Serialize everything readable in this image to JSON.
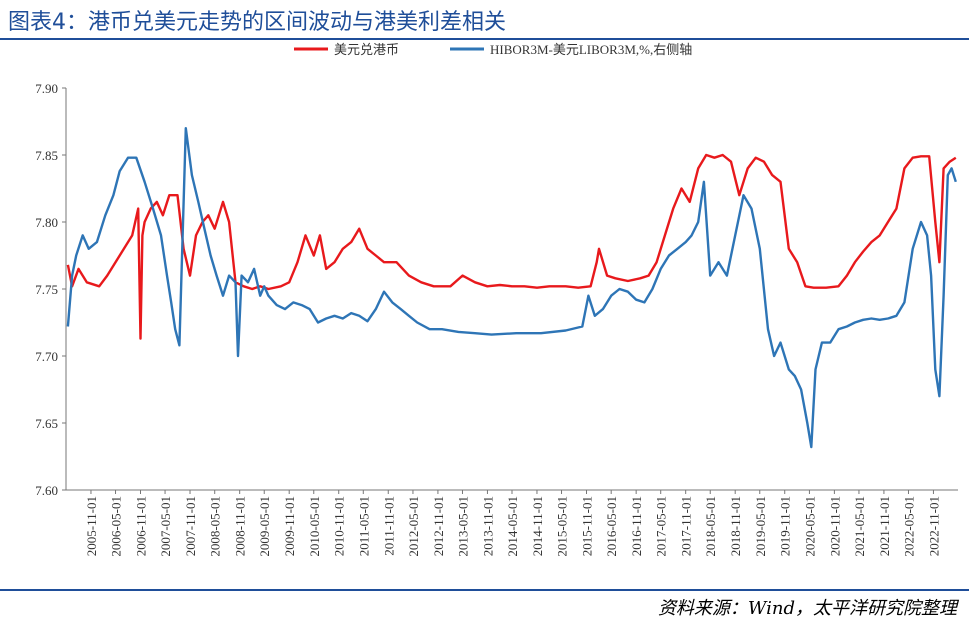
{
  "figure": {
    "title": "图表4：港币兑美元走势的区间波动与港美利差相关",
    "source": "资料来源：Wind，太平洋研究院整理"
  },
  "colors": {
    "hkd": "#e8191c",
    "hibor": "#2e75b6",
    "title": "#1f4e99"
  },
  "chart_data": {
    "type": "line",
    "title": "",
    "xlabel": "",
    "ylabel": "",
    "ylim": [
      7.6,
      7.9
    ],
    "yticks": [
      "7.90",
      "7.85",
      "7.80",
      "7.75",
      "7.70",
      "7.65",
      "7.60"
    ],
    "yticks_values": [
      7.9,
      7.85,
      7.8,
      7.75,
      7.7,
      7.65,
      7.6
    ],
    "x_range": [
      "2005-05-01",
      "2023-05-01"
    ],
    "xticks": [
      "2005-11-01",
      "2006-05-01",
      "2006-11-01",
      "2007-05-01",
      "2007-11-01",
      "2008-05-01",
      "2008-11-01",
      "2009-05-01",
      "2009-11-01",
      "2010-05-01",
      "2010-11-01",
      "2011-05-01",
      "2011-11-01",
      "2012-05-01",
      "2012-11-01",
      "2013-05-01",
      "2013-11-01",
      "2014-05-01",
      "2014-11-01",
      "2015-05-01",
      "2015-11-01",
      "2016-05-01",
      "2016-11-01",
      "2017-05-01",
      "2017-11-01",
      "2018-05-01",
      "2018-11-01",
      "2019-05-01",
      "2019-11-01",
      "2020-05-01",
      "2020-11-01",
      "2021-05-01",
      "2021-11-01",
      "2022-05-01",
      "2022-11-01"
    ],
    "legend_position": "top-center",
    "grid": false,
    "series": [
      {
        "name": "美元兑港币",
        "x": [
          "2005-05-15",
          "2005-06-15",
          "2005-08-01",
          "2005-10-01",
          "2006-01-01",
          "2006-03-01",
          "2006-06-01",
          "2006-09-01",
          "2006-10-15",
          "2006-11-01",
          "2006-11-15",
          "2006-12-01",
          "2007-01-15",
          "2007-03-01",
          "2007-04-15",
          "2007-06-01",
          "2007-08-01",
          "2007-09-15",
          "2007-11-01",
          "2007-12-15",
          "2008-02-01",
          "2008-03-15",
          "2008-05-01",
          "2008-07-01",
          "2008-08-15",
          "2008-10-01",
          "2008-12-01",
          "2009-02-01",
          "2009-04-01",
          "2009-06-01",
          "2009-09-01",
          "2009-11-01",
          "2010-01-01",
          "2010-03-01",
          "2010-05-01",
          "2010-06-15",
          "2010-08-01",
          "2010-10-01",
          "2010-12-01",
          "2011-02-01",
          "2011-04-01",
          "2011-06-01",
          "2011-08-01",
          "2011-10-01",
          "2012-01-01",
          "2012-04-01",
          "2012-07-01",
          "2012-10-01",
          "2013-02-01",
          "2013-05-01",
          "2013-08-01",
          "2013-11-01",
          "2014-02-01",
          "2014-05-01",
          "2014-08-01",
          "2014-11-01",
          "2015-02-01",
          "2015-06-01",
          "2015-09-01",
          "2015-12-01",
          "2016-01-15",
          "2016-02-01",
          "2016-04-01",
          "2016-06-01",
          "2016-09-01",
          "2016-12-01",
          "2017-02-01",
          "2017-04-01",
          "2017-06-01",
          "2017-08-01",
          "2017-10-01",
          "2017-12-01",
          "2018-02-01",
          "2018-04-01",
          "2018-06-01",
          "2018-08-01",
          "2018-10-01",
          "2018-12-01",
          "2019-02-01",
          "2019-04-01",
          "2019-06-01",
          "2019-08-01",
          "2019-10-01",
          "2019-12-01",
          "2020-02-01",
          "2020-04-01",
          "2020-06-01",
          "2020-09-01",
          "2020-12-01",
          "2021-02-01",
          "2021-04-01",
          "2021-06-01",
          "2021-08-01",
          "2021-10-01",
          "2021-12-01",
          "2022-02-01",
          "2022-04-01",
          "2022-06-01",
          "2022-08-01",
          "2022-10-01",
          "2022-11-15",
          "2022-12-15",
          "2023-01-15",
          "2023-03-01",
          "2023-04-15"
        ],
        "values": [
          7.768,
          7.752,
          7.765,
          7.755,
          7.752,
          7.76,
          7.775,
          7.79,
          7.81,
          7.713,
          7.79,
          7.8,
          7.81,
          7.815,
          7.805,
          7.82,
          7.82,
          7.78,
          7.76,
          7.79,
          7.8,
          7.805,
          7.795,
          7.815,
          7.8,
          7.755,
          7.752,
          7.75,
          7.752,
          7.75,
          7.752,
          7.755,
          7.77,
          7.79,
          7.775,
          7.79,
          7.765,
          7.77,
          7.78,
          7.785,
          7.795,
          7.78,
          7.775,
          7.77,
          7.77,
          7.76,
          7.755,
          7.752,
          7.752,
          7.76,
          7.755,
          7.752,
          7.753,
          7.752,
          7.752,
          7.751,
          7.752,
          7.752,
          7.751,
          7.752,
          7.77,
          7.78,
          7.76,
          7.758,
          7.756,
          7.758,
          7.76,
          7.77,
          7.79,
          7.81,
          7.825,
          7.815,
          7.84,
          7.85,
          7.848,
          7.85,
          7.845,
          7.82,
          7.84,
          7.848,
          7.845,
          7.835,
          7.83,
          7.78,
          7.77,
          7.752,
          7.751,
          7.751,
          7.752,
          7.76,
          7.77,
          7.778,
          7.785,
          7.79,
          7.8,
          7.81,
          7.84,
          7.848,
          7.849,
          7.849,
          7.8,
          7.77,
          7.84,
          7.845,
          7.848
        ]
      },
      {
        "name": "HIBOR3M-美元LIBOR3M,%,右侧轴",
        "x": [
          "2005-05-15",
          "2005-06-15",
          "2005-07-15",
          "2005-09-01",
          "2005-10-15",
          "2005-12-15",
          "2006-02-15",
          "2006-04-15",
          "2006-06-01",
          "2006-08-01",
          "2006-10-01",
          "2006-12-01",
          "2007-02-01",
          "2007-04-01",
          "2007-05-15",
          "2007-06-15",
          "2007-07-15",
          "2007-08-15",
          "2007-10-01",
          "2007-11-15",
          "2008-01-01",
          "2008-02-15",
          "2008-04-01",
          "2008-05-15",
          "2008-07-01",
          "2008-08-15",
          "2008-10-01",
          "2008-10-20",
          "2008-11-15",
          "2009-01-01",
          "2009-02-15",
          "2009-04-01",
          "2009-05-01",
          "2009-06-01",
          "2009-08-01",
          "2009-10-01",
          "2009-12-01",
          "2010-02-01",
          "2010-04-01",
          "2010-06-01",
          "2010-08-01",
          "2010-10-01",
          "2010-12-01",
          "2011-02-01",
          "2011-04-01",
          "2011-06-01",
          "2011-08-01",
          "2011-10-01",
          "2011-12-01",
          "2012-02-01",
          "2012-04-01",
          "2012-06-01",
          "2012-09-01",
          "2012-12-01",
          "2013-04-01",
          "2013-08-01",
          "2013-12-01",
          "2014-06-01",
          "2014-12-01",
          "2015-06-01",
          "2015-10-01",
          "2015-11-15",
          "2016-01-01",
          "2016-03-01",
          "2016-05-01",
          "2016-07-01",
          "2016-09-01",
          "2016-11-01",
          "2017-01-01",
          "2017-03-01",
          "2017-05-01",
          "2017-07-01",
          "2017-09-01",
          "2017-11-01",
          "2017-12-15",
          "2018-02-01",
          "2018-03-15",
          "2018-05-01",
          "2018-07-01",
          "2018-09-01",
          "2018-11-01",
          "2019-01-01",
          "2019-03-01",
          "2019-05-01",
          "2019-07-01",
          "2019-08-15",
          "2019-10-01",
          "2019-12-01",
          "2020-01-15",
          "2020-03-01",
          "2020-04-15",
          "2020-05-15",
          "2020-06-15",
          "2020-08-01",
          "2020-10-01",
          "2020-12-01",
          "2021-02-01",
          "2021-04-01",
          "2021-06-01",
          "2021-08-01",
          "2021-10-01",
          "2021-12-01",
          "2022-02-01",
          "2022-04-01",
          "2022-06-01",
          "2022-08-01",
          "2022-09-15",
          "2022-10-15",
          "2022-11-15",
          "2022-12-15",
          "2023-01-15",
          "2023-02-15",
          "2023-03-15",
          "2023-04-15"
        ],
        "values": [
          7.722,
          7.76,
          7.775,
          7.79,
          7.78,
          7.785,
          7.805,
          7.82,
          7.838,
          7.848,
          7.848,
          7.83,
          7.81,
          7.79,
          7.76,
          7.74,
          7.72,
          7.708,
          7.87,
          7.835,
          7.815,
          7.795,
          7.775,
          7.76,
          7.745,
          7.76,
          7.755,
          7.7,
          7.76,
          7.755,
          7.765,
          7.745,
          7.752,
          7.745,
          7.738,
          7.735,
          7.74,
          7.738,
          7.735,
          7.725,
          7.728,
          7.73,
          7.728,
          7.732,
          7.73,
          7.726,
          7.735,
          7.748,
          7.74,
          7.735,
          7.73,
          7.725,
          7.72,
          7.72,
          7.718,
          7.717,
          7.716,
          7.717,
          7.717,
          7.719,
          7.722,
          7.745,
          7.73,
          7.735,
          7.745,
          7.75,
          7.748,
          7.742,
          7.74,
          7.75,
          7.765,
          7.775,
          7.78,
          7.785,
          7.79,
          7.8,
          7.83,
          7.76,
          7.77,
          7.76,
          7.79,
          7.82,
          7.81,
          7.78,
          7.72,
          7.7,
          7.71,
          7.69,
          7.685,
          7.675,
          7.65,
          7.632,
          7.69,
          7.71,
          7.71,
          7.72,
          7.722,
          7.725,
          7.727,
          7.728,
          7.727,
          7.728,
          7.73,
          7.74,
          7.78,
          7.8,
          7.79,
          7.76,
          7.69,
          7.67,
          7.745,
          7.835,
          7.84,
          7.83
        ]
      }
    ]
  }
}
